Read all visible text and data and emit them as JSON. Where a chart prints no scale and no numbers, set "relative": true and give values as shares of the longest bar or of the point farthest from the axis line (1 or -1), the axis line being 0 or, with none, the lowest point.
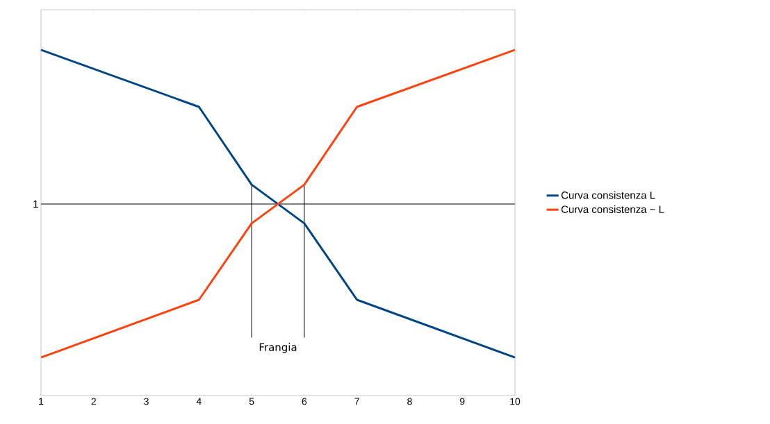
{
  "chart_data": {
    "type": "line",
    "relative": true,
    "x": [
      1,
      4,
      5,
      6,
      7,
      10
    ],
    "series": [
      {
        "name": "Curva consistenza L",
        "color": "#004586",
        "values": [
          1.0,
          0.835,
          0.61,
          0.498,
          0.277,
          0.11
        ]
      },
      {
        "name": "Curva consistenza ~ L",
        "color": "#ff420e",
        "values": [
          0.11,
          0.277,
          0.498,
          0.61,
          0.835,
          1.0
        ]
      }
    ],
    "xlim": [
      1,
      10
    ],
    "xticks": [
      1,
      2,
      3,
      4,
      5,
      6,
      7,
      8,
      9,
      10
    ],
    "ref_lines": [
      {
        "axis": "y",
        "value": 0.554,
        "label": "1",
        "color": "#000000"
      },
      {
        "axis": "x",
        "value": 5,
        "color": "#000000"
      },
      {
        "axis": "x",
        "value": 6,
        "color": "#000000"
      }
    ],
    "annotations": [
      "Frangia"
    ],
    "legend": "right",
    "marker": "none",
    "line_style": "solid",
    "grid": false
  }
}
